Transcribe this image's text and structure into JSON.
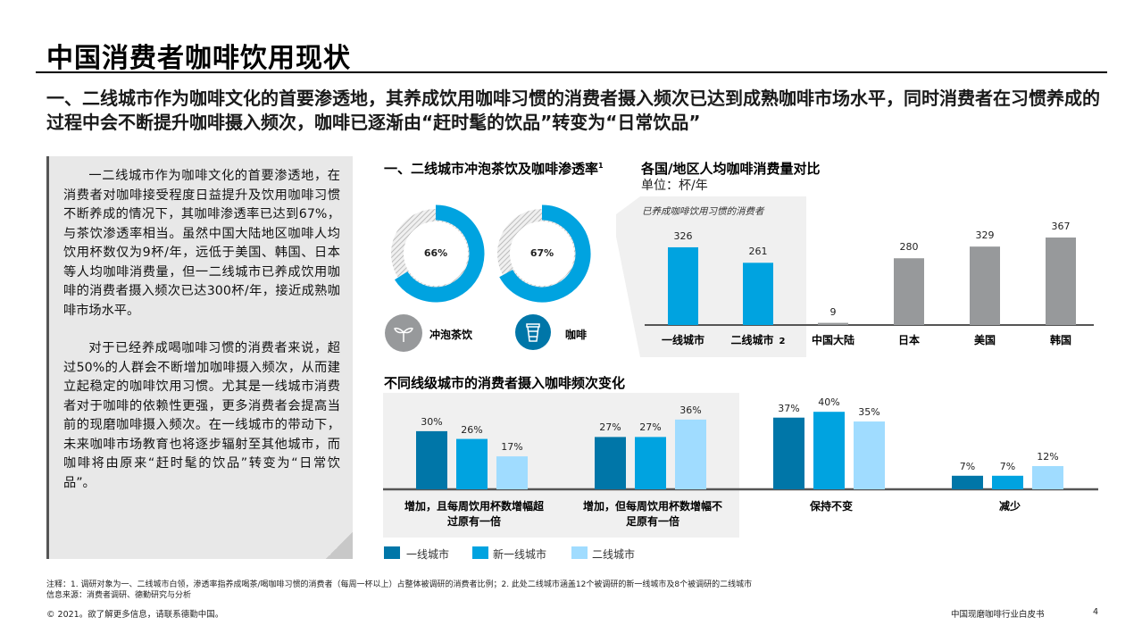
{
  "title": "中国消费者咖啡饮用现状",
  "subtitle": "一、二线城市作为咖啡文化的首要渗透地，其养成饮用咖啡习惯的消费者摄入频次已达到成熟咖啡市场水平，同时消费者在习惯养成的过程中会不断提升咖啡摄入频次，咖啡已逐渐由“赶时髦的饮品”转变为“日常饮品”",
  "textbox": {
    "p1": "一二线城市作为咖啡文化的首要渗透地，在消费者对咖啡接受程度日益提升及饮用咖啡习惯不断养成的情况下，其咖啡渗透率已达到67%，与茶饮渗透率相当。虽然中国大陆地区咖啡人均饮用杯数仅为9杯/年，远低于美国、韩国、日本等人均咖啡消费量，但一二线城市已养成饮用咖啡的消费者摄入频次已达300杯/年，接近成熟咖啡市场水平。",
    "p2": "对于已经养成喝咖啡习惯的消费者来说，超过50%的人群会不断增加咖啡摄入频次，从而建立起稳定的咖啡饮用习惯。尤其是一线城市消费者对于咖啡的依赖性更强，更多消费者会提高当前的现磨咖啡摄入频次。在一线城市的带动下，未来咖啡市场教育也将逐步辐射至其他城市，而咖啡将由原来“赶时髦的饮品”转变为“日常饮品”。"
  },
  "colors": {
    "tier1": "#0076a8",
    "new_tier1": "#00a3e0",
    "tier2": "#a0dcff",
    "gray_bar": "#97999b"
  },
  "chart_data": [
    {
      "type": "pie",
      "title": "一、二线城市冲泡茶饮及咖啡渗透率",
      "title_sup": "1",
      "items": [
        {
          "label": "冲泡茶饮",
          "value": 66,
          "value_label": "66%",
          "icon": "sprout-icon"
        },
        {
          "label": "咖啡",
          "value": 67,
          "value_label": "67%",
          "icon": "coffee-cup-icon"
        }
      ]
    },
    {
      "type": "bar",
      "title": "各国/地区人均咖啡消费量对比",
      "unit": "单位：杯/年",
      "group_note": "已养成咖啡饮用习惯的消费者",
      "categories": [
        "一线城市",
        "二线城市",
        "中国大陆",
        "日本",
        "美国",
        "韩国"
      ],
      "category_sup": [
        "",
        "2",
        "",
        "",
        "",
        ""
      ],
      "values": [
        326,
        261,
        9,
        280,
        329,
        367
      ],
      "highlight": [
        true,
        true,
        false,
        false,
        false,
        false
      ]
    },
    {
      "type": "bar",
      "title": "不同线级城市的消费者摄入咖啡频次变化",
      "categories": [
        "增加，且每周饮用杯数增幅超过原有一倍",
        "增加，但每周饮用杯数增幅不足原有一倍",
        "保持不变",
        "减少"
      ],
      "series": [
        {
          "name": "一线城市",
          "values": [
            30,
            27,
            37,
            7
          ]
        },
        {
          "name": "新一线城市",
          "values": [
            26,
            27,
            40,
            7
          ]
        },
        {
          "name": "二线城市",
          "values": [
            17,
            36,
            35,
            12
          ]
        }
      ],
      "unit_suffix": "%",
      "legend": "bottom-left"
    }
  ],
  "footer": {
    "note": "注释：1. 调研对象为一、二线城市白领，渗透率指养成喝茶/喝咖啡习惯的消费者（每周一杯以上）占整体被调研的消费者比例；2. 此处二线城市涵盖12个被调研的新一线城市及8个被调研的二线城市",
    "source": "信息来源：消费者调研、德勤研究与分析",
    "copyright": "© 2021。欲了解更多信息，请联系德勤中国。",
    "doc_name": "中国现磨咖啡行业白皮书",
    "page": "4"
  }
}
